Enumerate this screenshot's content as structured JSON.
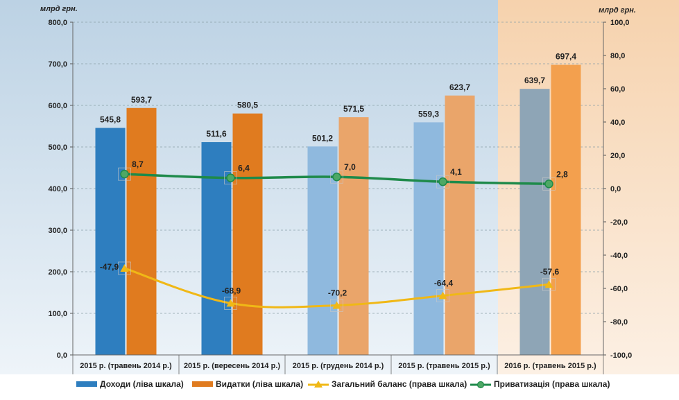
{
  "chart_data": {
    "type": "bar",
    "left_unit": "млрд грн.",
    "right_unit": "млрд грн.",
    "categories": [
      "2015 р. (травень 2014 р.)",
      "2015 р. (вересень 2014 р.)",
      "2015 р. (грудень 2014 р.)",
      "2015 р. (травень 2015 р.)",
      "2016 р. (травень 2015 р.)"
    ],
    "ylim_left": [
      0,
      800
    ],
    "ylim_right": [
      -100,
      100
    ],
    "yticks_left": [
      "0,0",
      "100,0",
      "200,0",
      "300,0",
      "400,0",
      "500,0",
      "600,0",
      "700,0",
      "800,0"
    ],
    "yticks_right": [
      "-100,0",
      "-80,0",
      "-60,0",
      "-40,0",
      "-20,0",
      "0,0",
      "20,0",
      "40,0",
      "60,0",
      "80,0",
      "100,0"
    ],
    "grid": true,
    "legend_position": "bottom",
    "series": [
      {
        "name": "Доходи (ліва шкала)",
        "type": "bar",
        "axis": "left",
        "color": "#2e7ebf",
        "values": [
          545.8,
          511.6,
          501.2,
          559.3,
          639.7
        ],
        "labels": [
          "545,8",
          "511,6",
          "501,2",
          "559,3",
          "639,7"
        ]
      },
      {
        "name": "Видатки (ліва шкала)",
        "type": "bar",
        "axis": "left",
        "color": "#e07b1f",
        "values": [
          593.7,
          580.5,
          571.5,
          623.7,
          697.4
        ],
        "labels": [
          "593,7",
          "580,5",
          "571,5",
          "623,7",
          "697,4"
        ]
      },
      {
        "name": "Загальний баланс  (права шкала)",
        "type": "line",
        "axis": "right",
        "color": "#f0b816",
        "values": [
          -47.9,
          -68.9,
          -70.2,
          -64.4,
          -57.6
        ],
        "labels": [
          "-47,9",
          "-68,9",
          "-70,2",
          "-64,4",
          "-57,6"
        ]
      },
      {
        "name": "Приватизація (права шкала)",
        "type": "line",
        "axis": "right",
        "color": "#1e8a4a",
        "values": [
          8.7,
          6.4,
          7.0,
          4.1,
          2.8
        ],
        "labels": [
          "8,7",
          "6,4",
          "7,0",
          "4,1",
          "2,8"
        ]
      }
    ]
  },
  "colors": {
    "background_blue": "#c9dbe9",
    "forecast_orange_bg": "#f7d9b8",
    "income_pale": "#8fb9de",
    "expense_pale": "#eaa56a",
    "income_gray": "#8ea5b6",
    "expense_bright": "#f3a04e"
  }
}
